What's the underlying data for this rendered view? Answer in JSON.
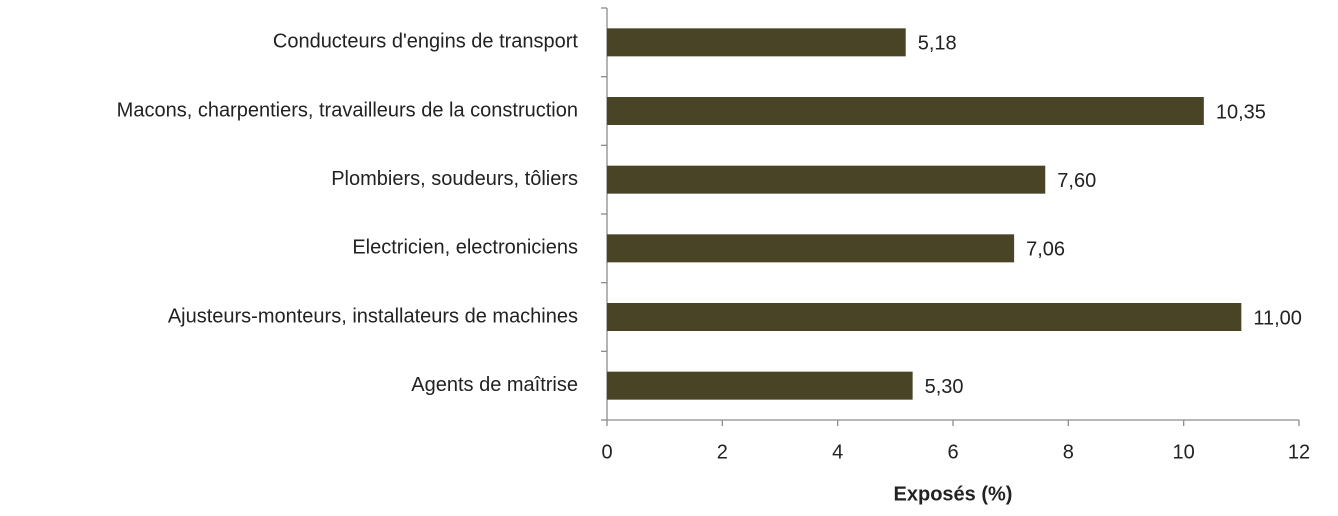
{
  "chart_data": {
    "type": "bar",
    "orientation": "horizontal",
    "x_label": "Exposés (%)",
    "categories": [
      "Conducteurs d'engins de transport",
      "Macons, charpentiers, travailleurs de la construction",
      "Plombiers, soudeurs, tôliers",
      "Electricien, electroniciens",
      "Ajusteurs-monteurs, installateurs de machines",
      "Agents de maîtrise"
    ],
    "values": [
      5.18,
      10.35,
      7.6,
      7.06,
      11,
      5.3
    ],
    "value_labels": [
      "5,18",
      "10,35",
      "7,60",
      "7,06",
      "11,00",
      "5,30"
    ],
    "color": "#4a4426",
    "xlim": [
      0,
      12
    ],
    "xticks": [
      0,
      2,
      4,
      6,
      8,
      10,
      12
    ]
  }
}
